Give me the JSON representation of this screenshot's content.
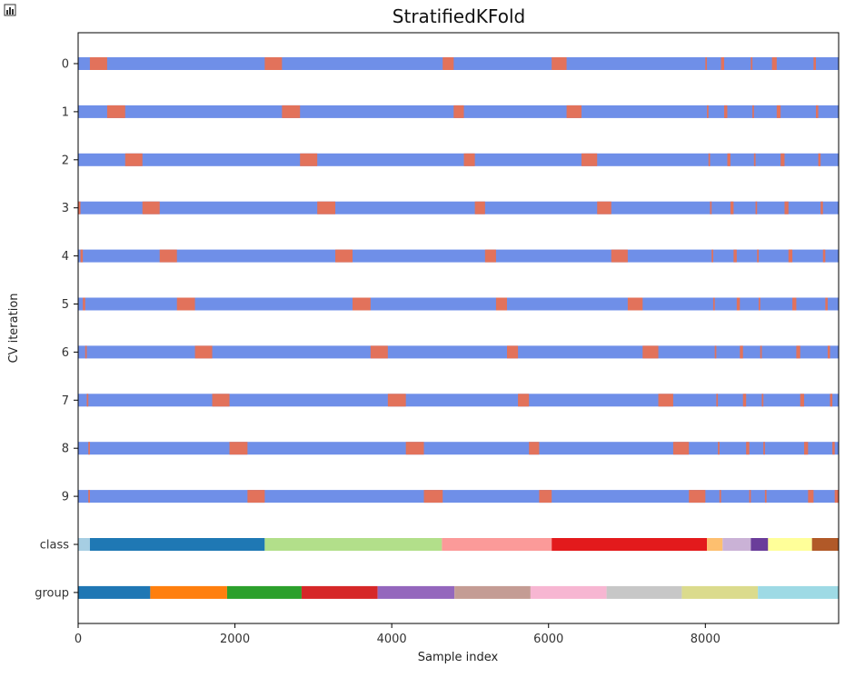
{
  "chart_data": {
    "type": "bar",
    "title": "StratifiedKFold",
    "xlabel": "Sample index",
    "ylabel": "CV iteration",
    "xlim": [
      0,
      9700
    ],
    "xticks": [
      "0",
      "2000",
      "4000",
      "6000",
      "8000"
    ],
    "xtick_values": [
      0,
      2000,
      4000,
      6000,
      8000
    ],
    "row_labels": [
      "0",
      "1",
      "2",
      "3",
      "4",
      "5",
      "6",
      "7",
      "8",
      "9",
      "class",
      "group"
    ],
    "colors": {
      "train": "#6f8fe8",
      "test": "#e2725b"
    },
    "folds": [
      {
        "label": "0",
        "test_ranges": [
          [
            150,
            370
          ],
          [
            2380,
            2600
          ],
          [
            4650,
            4790
          ],
          [
            6040,
            6230
          ],
          [
            8000,
            8020
          ],
          [
            8200,
            8240
          ],
          [
            8580,
            8600
          ],
          [
            8850,
            8910
          ],
          [
            9380,
            9410
          ]
        ]
      },
      {
        "label": "1",
        "test_ranges": [
          [
            370,
            600
          ],
          [
            2600,
            2830
          ],
          [
            4790,
            4920
          ],
          [
            6230,
            6420
          ],
          [
            8020,
            8040
          ],
          [
            8240,
            8280
          ],
          [
            8600,
            8620
          ],
          [
            8910,
            8960
          ],
          [
            9410,
            9440
          ]
        ]
      },
      {
        "label": "2",
        "test_ranges": [
          [
            600,
            820
          ],
          [
            2830,
            3050
          ],
          [
            4920,
            5060
          ],
          [
            6420,
            6620
          ],
          [
            8040,
            8060
          ],
          [
            8280,
            8320
          ],
          [
            8620,
            8640
          ],
          [
            8960,
            9010
          ],
          [
            9440,
            9470
          ]
        ]
      },
      {
        "label": "3",
        "test_ranges": [
          [
            0,
            30
          ],
          [
            820,
            1040
          ],
          [
            3050,
            3280
          ],
          [
            5060,
            5190
          ],
          [
            6620,
            6800
          ],
          [
            8060,
            8080
          ],
          [
            8320,
            8360
          ],
          [
            8640,
            8660
          ],
          [
            9010,
            9060
          ],
          [
            9470,
            9500
          ]
        ]
      },
      {
        "label": "4",
        "test_ranges": [
          [
            30,
            60
          ],
          [
            1040,
            1260
          ],
          [
            3280,
            3500
          ],
          [
            5190,
            5330
          ],
          [
            6800,
            7010
          ],
          [
            8080,
            8100
          ],
          [
            8360,
            8400
          ],
          [
            8660,
            8680
          ],
          [
            9060,
            9110
          ],
          [
            9500,
            9530
          ]
        ]
      },
      {
        "label": "5",
        "test_ranges": [
          [
            60,
            90
          ],
          [
            1260,
            1490
          ],
          [
            3500,
            3730
          ],
          [
            5330,
            5470
          ],
          [
            7010,
            7200
          ],
          [
            8100,
            8120
          ],
          [
            8400,
            8440
          ],
          [
            8680,
            8700
          ],
          [
            9110,
            9160
          ],
          [
            9530,
            9560
          ]
        ]
      },
      {
        "label": "6",
        "test_ranges": [
          [
            90,
            110
          ],
          [
            1490,
            1710
          ],
          [
            3730,
            3950
          ],
          [
            5470,
            5610
          ],
          [
            7200,
            7400
          ],
          [
            8120,
            8140
          ],
          [
            8440,
            8480
          ],
          [
            8700,
            8720
          ],
          [
            9160,
            9210
          ],
          [
            9560,
            9590
          ]
        ]
      },
      {
        "label": "7",
        "test_ranges": [
          [
            110,
            130
          ],
          [
            1710,
            1930
          ],
          [
            3950,
            4180
          ],
          [
            5610,
            5750
          ],
          [
            7400,
            7590
          ],
          [
            8140,
            8160
          ],
          [
            8480,
            8520
          ],
          [
            8720,
            8740
          ],
          [
            9210,
            9260
          ],
          [
            9590,
            9620
          ]
        ]
      },
      {
        "label": "8",
        "test_ranges": [
          [
            130,
            150
          ],
          [
            1930,
            2160
          ],
          [
            4180,
            4410
          ],
          [
            5750,
            5880
          ],
          [
            7590,
            7790
          ],
          [
            8160,
            8180
          ],
          [
            8520,
            8560
          ],
          [
            8740,
            8760
          ],
          [
            9260,
            9310
          ],
          [
            9620,
            9650
          ]
        ]
      },
      {
        "label": "9",
        "test_ranges": [
          [
            130,
            150
          ],
          [
            2160,
            2380
          ],
          [
            4410,
            4650
          ],
          [
            5880,
            6040
          ],
          [
            7790,
            8000
          ],
          [
            8180,
            8200
          ],
          [
            8560,
            8580
          ],
          [
            8760,
            8780
          ],
          [
            9310,
            9380
          ],
          [
            9650,
            9700
          ]
        ]
      }
    ],
    "class_segments": [
      {
        "start": 0,
        "end": 150,
        "color": "#a6cee3"
      },
      {
        "start": 150,
        "end": 2380,
        "color": "#1f78b4"
      },
      {
        "start": 2380,
        "end": 4640,
        "color": "#b2df8a"
      },
      {
        "start": 4640,
        "end": 6040,
        "color": "#fb9a99"
      },
      {
        "start": 6040,
        "end": 8020,
        "color": "#e31a1c"
      },
      {
        "start": 8020,
        "end": 8220,
        "color": "#fdbf6f"
      },
      {
        "start": 8220,
        "end": 8580,
        "color": "#cab2d6"
      },
      {
        "start": 8580,
        "end": 8800,
        "color": "#6a3d9a"
      },
      {
        "start": 8800,
        "end": 9360,
        "color": "#ffff99"
      },
      {
        "start": 9360,
        "end": 9700,
        "color": "#b15928"
      }
    ],
    "group_segments": [
      {
        "start": 0,
        "end": 920,
        "color": "#1f77b4"
      },
      {
        "start": 920,
        "end": 1900,
        "color": "#ff7f0e"
      },
      {
        "start": 1900,
        "end": 2850,
        "color": "#2ca02c"
      },
      {
        "start": 2850,
        "end": 3820,
        "color": "#d62728"
      },
      {
        "start": 3820,
        "end": 4800,
        "color": "#9467bd"
      },
      {
        "start": 4800,
        "end": 5770,
        "color": "#c49c94"
      },
      {
        "start": 5770,
        "end": 6740,
        "color": "#f7b6d2"
      },
      {
        "start": 6740,
        "end": 7700,
        "color": "#c7c7c7"
      },
      {
        "start": 7700,
        "end": 8670,
        "color": "#dbdb8d"
      },
      {
        "start": 8670,
        "end": 9700,
        "color": "#9edae5"
      }
    ]
  },
  "toolbar": {
    "icon": "bar-chart-icon"
  }
}
